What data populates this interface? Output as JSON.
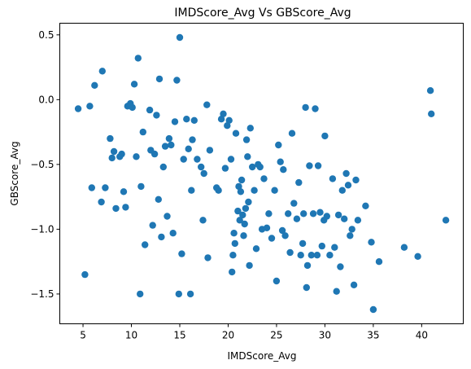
{
  "chart_data": {
    "type": "scatter",
    "title": "IMDScore_Avg Vs GBScore_Avg",
    "xlabel": "IMDScore_Avg",
    "ylabel": "GBScore_Avg",
    "xlim": [
      2.6,
      44.3
    ],
    "ylim": [
      -1.73,
      0.59
    ],
    "xticks": [
      5,
      10,
      15,
      20,
      25,
      30,
      35,
      40
    ],
    "xtick_labels": [
      "5",
      "10",
      "15",
      "20",
      "25",
      "30",
      "35",
      "40"
    ],
    "yticks": [
      0.5,
      0.0,
      -0.5,
      -1.0,
      -1.5
    ],
    "ytick_labels": [
      "0.5",
      "0.0",
      "−0.5",
      "−1.0",
      "−1.5"
    ],
    "grid": false,
    "marker_color": "#1f77b4",
    "points": [
      [
        4.5,
        -0.07
      ],
      [
        5.2,
        -1.35
      ],
      [
        5.7,
        -0.05
      ],
      [
        5.9,
        -0.68
      ],
      [
        6.2,
        0.11
      ],
      [
        6.9,
        -0.79
      ],
      [
        7.0,
        0.22
      ],
      [
        7.3,
        -0.68
      ],
      [
        7.8,
        -0.3
      ],
      [
        8.0,
        -0.45
      ],
      [
        8.2,
        -0.4
      ],
      [
        8.4,
        -0.84
      ],
      [
        8.8,
        -0.44
      ],
      [
        9.0,
        -0.42
      ],
      [
        9.2,
        -0.71
      ],
      [
        9.4,
        -0.83
      ],
      [
        9.6,
        -0.05
      ],
      [
        9.9,
        -0.03
      ],
      [
        10.1,
        -0.06
      ],
      [
        10.3,
        0.12
      ],
      [
        10.5,
        -0.44
      ],
      [
        10.7,
        0.32
      ],
      [
        10.9,
        -1.5
      ],
      [
        11.0,
        -0.67
      ],
      [
        11.2,
        -0.25
      ],
      [
        11.4,
        -1.12
      ],
      [
        11.9,
        -0.08
      ],
      [
        12.0,
        -0.39
      ],
      [
        12.2,
        -0.97
      ],
      [
        12.4,
        -0.42
      ],
      [
        12.6,
        -0.12
      ],
      [
        12.8,
        -0.77
      ],
      [
        12.9,
        0.16
      ],
      [
        13.1,
        -1.06
      ],
      [
        13.3,
        -0.52
      ],
      [
        13.5,
        -0.36
      ],
      [
        13.7,
        -0.9
      ],
      [
        13.9,
        -0.3
      ],
      [
        14.1,
        -0.35
      ],
      [
        14.3,
        -1.03
      ],
      [
        14.5,
        -0.17
      ],
      [
        14.7,
        0.15
      ],
      [
        14.9,
        -1.5
      ],
      [
        15.0,
        0.48
      ],
      [
        15.2,
        -1.19
      ],
      [
        15.4,
        -0.46
      ],
      [
        15.7,
        -0.15
      ],
      [
        15.9,
        -0.38
      ],
      [
        16.1,
        -1.5
      ],
      [
        16.2,
        -0.7
      ],
      [
        16.3,
        -0.31
      ],
      [
        16.5,
        -0.16
      ],
      [
        16.8,
        -0.46
      ],
      [
        17.2,
        -0.52
      ],
      [
        17.4,
        -0.93
      ],
      [
        17.5,
        -0.57
      ],
      [
        17.8,
        -0.04
      ],
      [
        17.9,
        -1.22
      ],
      [
        18.1,
        -0.39
      ],
      [
        18.8,
        -0.68
      ],
      [
        19.0,
        -0.7
      ],
      [
        19.3,
        -0.15
      ],
      [
        19.5,
        -0.11
      ],
      [
        19.7,
        -0.53
      ],
      [
        19.9,
        -0.2
      ],
      [
        20.1,
        -0.16
      ],
      [
        20.3,
        -0.46
      ],
      [
        20.4,
        -1.33
      ],
      [
        20.5,
        -1.2
      ],
      [
        20.6,
        -1.03
      ],
      [
        20.7,
        -1.11
      ],
      [
        20.8,
        -0.26
      ],
      [
        21.0,
        -0.86
      ],
      [
        21.1,
        -0.67
      ],
      [
        21.2,
        -0.93
      ],
      [
        21.3,
        -0.71
      ],
      [
        21.4,
        -0.62
      ],
      [
        21.5,
        -0.89
      ],
      [
        21.6,
        -1.05
      ],
      [
        21.7,
        -0.96
      ],
      [
        21.8,
        -0.84
      ],
      [
        21.9,
        -0.31
      ],
      [
        22.0,
        -0.44
      ],
      [
        22.1,
        -0.79
      ],
      [
        22.2,
        -1.28
      ],
      [
        22.3,
        -0.22
      ],
      [
        22.5,
        -0.52
      ],
      [
        22.7,
        -0.7
      ],
      [
        22.9,
        -1.15
      ],
      [
        23.1,
        -0.5
      ],
      [
        23.3,
        -0.52
      ],
      [
        23.5,
        -1.0
      ],
      [
        23.7,
        -0.61
      ],
      [
        24.0,
        -0.99
      ],
      [
        24.2,
        -0.88
      ],
      [
        24.5,
        -1.07
      ],
      [
        24.8,
        -0.7
      ],
      [
        25.0,
        -1.4
      ],
      [
        25.2,
        -0.35
      ],
      [
        25.4,
        -0.48
      ],
      [
        25.6,
        -1.01
      ],
      [
        25.7,
        -0.54
      ],
      [
        25.9,
        -1.05
      ],
      [
        26.2,
        -0.88
      ],
      [
        26.4,
        -1.18
      ],
      [
        26.6,
        -0.26
      ],
      [
        26.8,
        -0.8
      ],
      [
        27.1,
        -0.92
      ],
      [
        27.3,
        -0.64
      ],
      [
        27.5,
        -1.2
      ],
      [
        27.7,
        -1.11
      ],
      [
        27.8,
        -0.88
      ],
      [
        28.0,
        -0.06
      ],
      [
        28.1,
        -1.45
      ],
      [
        28.2,
        -1.28
      ],
      [
        28.4,
        -0.51
      ],
      [
        28.6,
        -1.2
      ],
      [
        28.8,
        -0.88
      ],
      [
        29.0,
        -0.07
      ],
      [
        29.2,
        -1.2
      ],
      [
        29.3,
        -0.51
      ],
      [
        29.5,
        -0.87
      ],
      [
        29.7,
        -1.13
      ],
      [
        29.9,
        -0.93
      ],
      [
        30.0,
        -0.28
      ],
      [
        30.2,
        -0.9
      ],
      [
        30.5,
        -1.2
      ],
      [
        30.8,
        -0.61
      ],
      [
        31.0,
        -1.14
      ],
      [
        31.2,
        -1.48
      ],
      [
        31.4,
        -0.89
      ],
      [
        31.6,
        -1.29
      ],
      [
        31.8,
        -0.7
      ],
      [
        32.0,
        -0.92
      ],
      [
        32.2,
        -0.57
      ],
      [
        32.4,
        -0.66
      ],
      [
        32.6,
        -1.05
      ],
      [
        32.8,
        -1.0
      ],
      [
        33.0,
        -1.43
      ],
      [
        33.2,
        -0.62
      ],
      [
        33.4,
        -0.93
      ],
      [
        34.2,
        -0.82
      ],
      [
        34.8,
        -1.1
      ],
      [
        35.0,
        -1.62
      ],
      [
        35.6,
        -1.25
      ],
      [
        38.2,
        -1.14
      ],
      [
        39.6,
        -1.21
      ],
      [
        40.9,
        0.07
      ],
      [
        41.0,
        -0.11
      ],
      [
        42.5,
        -0.93
      ]
    ]
  }
}
